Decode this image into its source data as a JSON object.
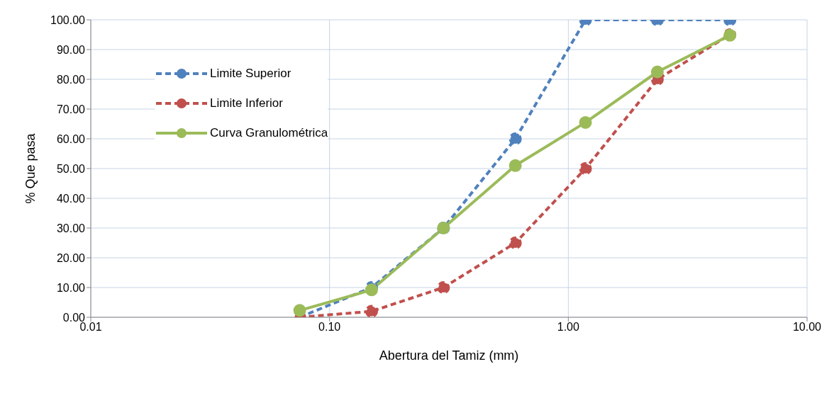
{
  "chart_data": {
    "type": "line",
    "xlabel": "Abertura del Tamiz (mm)",
    "ylabel": "% Que pasa",
    "x": [
      0.075,
      0.15,
      0.3,
      0.6,
      1.18,
      2.36,
      4.75
    ],
    "series": [
      {
        "name": "Limite Superior",
        "color": "#4f81bd",
        "line_style": "dashed",
        "values": [
          0,
          10,
          30,
          60,
          100,
          100,
          100
        ]
      },
      {
        "name": "Limite Inferior",
        "color": "#c0504d",
        "line_style": "dashed",
        "values": [
          0,
          2,
          10,
          25,
          50,
          80,
          95
        ]
      },
      {
        "name": "Curva Granulométrica",
        "color": "#9bbb59",
        "line_style": "solid",
        "values": [
          2.3,
          9.2,
          30,
          51,
          65.5,
          82.5,
          94.8
        ]
      }
    ],
    "log": "x",
    "xlim": [
      0.01,
      10
    ],
    "xticks": [
      {
        "value": 0.01,
        "label": "0.01"
      },
      {
        "value": 0.1,
        "label": "0.10"
      },
      {
        "value": 1,
        "label": "1.00"
      },
      {
        "value": 10,
        "label": "10.00"
      }
    ],
    "ylim": [
      0,
      100
    ],
    "yticks": [
      {
        "value": 0,
        "label": "0.00"
      },
      {
        "value": 10,
        "label": "10.00"
      },
      {
        "value": 20,
        "label": "20.00"
      },
      {
        "value": 30,
        "label": "30.00"
      },
      {
        "value": 40,
        "label": "40.00"
      },
      {
        "value": 50,
        "label": "50.00"
      },
      {
        "value": 60,
        "label": "60.00"
      },
      {
        "value": 70,
        "label": "70.00"
      },
      {
        "value": 80,
        "label": "80.00"
      },
      {
        "value": 90,
        "label": "90.00"
      },
      {
        "value": 100,
        "label": "100.00"
      }
    ],
    "grid": true,
    "legend": "top left",
    "marker": "circle"
  }
}
